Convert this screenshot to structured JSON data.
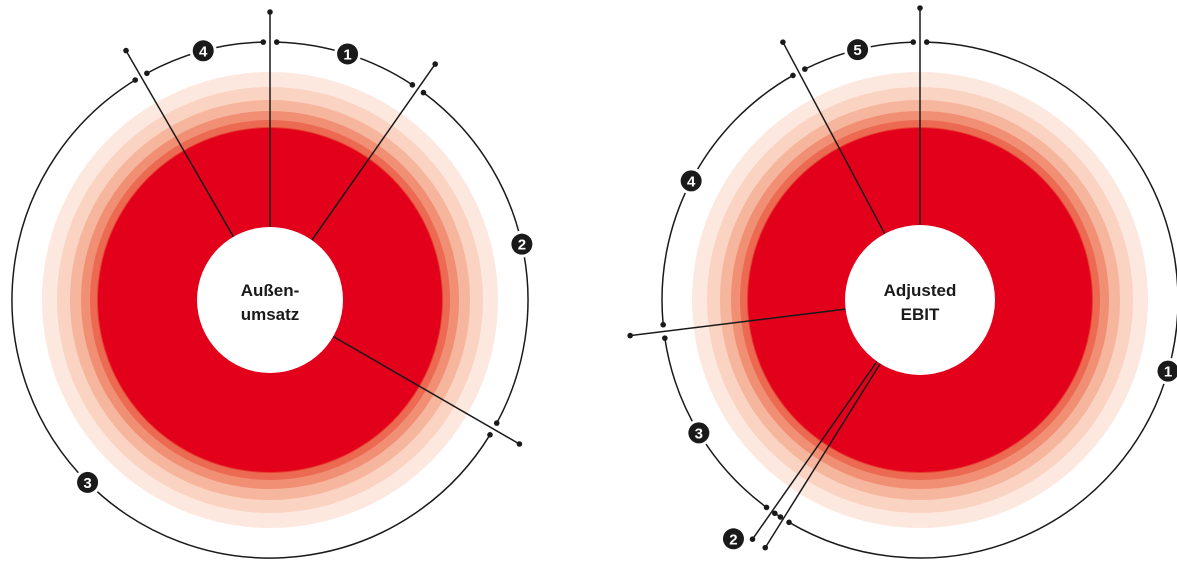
{
  "colors": {
    "core": "#e2001a",
    "ring_colors": [
      "#e63c2e",
      "#ec6a52",
      "#f18f75",
      "#f6b59d",
      "#fad3c2",
      "#fde8df"
    ],
    "line": "#1a1a1a",
    "badge": "#1a1a1a",
    "badge_text": "#ffffff",
    "center_fill": "#ffffff"
  },
  "chart_data": [
    {
      "type": "pie",
      "center_label": [
        "Außen-",
        "umsatz"
      ],
      "segments": [
        {
          "label": "1",
          "start_deg": 0,
          "end_deg": 35
        },
        {
          "label": "2",
          "start_deg": 35,
          "end_deg": 120
        },
        {
          "label": "3",
          "start_deg": 120,
          "end_deg": 330
        },
        {
          "label": "4",
          "start_deg": 330,
          "end_deg": 360
        }
      ]
    },
    {
      "type": "pie",
      "center_label": [
        "Adjusted",
        "EBIT"
      ],
      "segments": [
        {
          "label": "1",
          "start_deg": 0,
          "end_deg": 212
        },
        {
          "label": "2",
          "start_deg": 212,
          "end_deg": 215
        },
        {
          "label": "3",
          "start_deg": 215,
          "end_deg": 263
        },
        {
          "label": "4",
          "start_deg": 263,
          "end_deg": 332
        },
        {
          "label": "5",
          "start_deg": 332,
          "end_deg": 360
        }
      ]
    }
  ]
}
